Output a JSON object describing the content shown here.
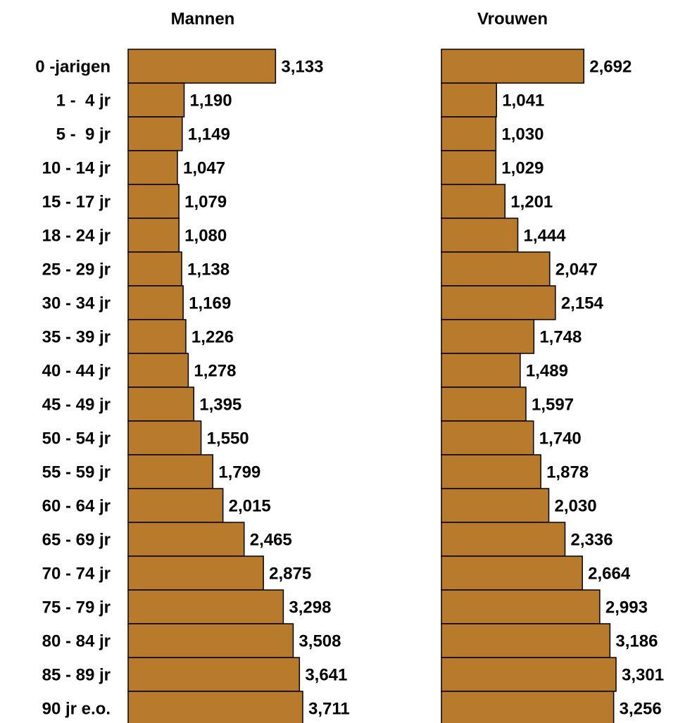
{
  "chart_data": {
    "type": "bar",
    "orientation": "horizontal",
    "categories": [
      "0 -jarigen",
      "1 -  4 jr",
      "5 -  9 jr",
      "10 - 14 jr",
      "15 - 17 jr",
      "18 - 24 jr",
      "25 - 29 jr",
      "30 - 34 jr",
      "35 - 39 jr",
      "40 - 44 jr",
      "45 - 49 jr",
      "50 - 54 jr",
      "55 - 59 jr",
      "60 - 64 jr",
      "65 - 69 jr",
      "70 - 74 jr",
      "75 - 79 jr",
      "80 - 84 jr",
      "85 - 89 jr",
      "90 jr e.o."
    ],
    "series": [
      {
        "name": "Mannen",
        "color": "#b87b2c",
        "values": [
          3.133,
          1.19,
          1.149,
          1.047,
          1.079,
          1.08,
          1.138,
          1.169,
          1.226,
          1.278,
          1.395,
          1.55,
          1.799,
          2.015,
          2.465,
          2.875,
          3.298,
          3.508,
          3.641,
          3.711
        ],
        "value_labels": [
          "3,133",
          "1,190",
          "1,149",
          "1,047",
          "1,079",
          "1,080",
          "1,138",
          "1,169",
          "1,226",
          "1,278",
          "1,395",
          "1,550",
          "1,799",
          "2,015",
          "2,465",
          "2,875",
          "3,298",
          "3,508",
          "3,641",
          "3,711"
        ]
      },
      {
        "name": "Vrouwen",
        "color": "#b87b2c",
        "values": [
          2.692,
          1.041,
          1.03,
          1.029,
          1.201,
          1.444,
          2.047,
          2.154,
          1.748,
          1.489,
          1.597,
          1.74,
          1.878,
          2.03,
          2.336,
          2.664,
          2.993,
          3.186,
          3.301,
          3.256
        ],
        "value_labels": [
          "2,692",
          "1,041",
          "1,030",
          "1,029",
          "1,201",
          "1,444",
          "2,047",
          "2,154",
          "1,748",
          "1,489",
          "1,597",
          "1,740",
          "1,878",
          "2,030",
          "2,336",
          "2,664",
          "2,993",
          "3,186",
          "3,301",
          "3,256"
        ]
      }
    ]
  }
}
